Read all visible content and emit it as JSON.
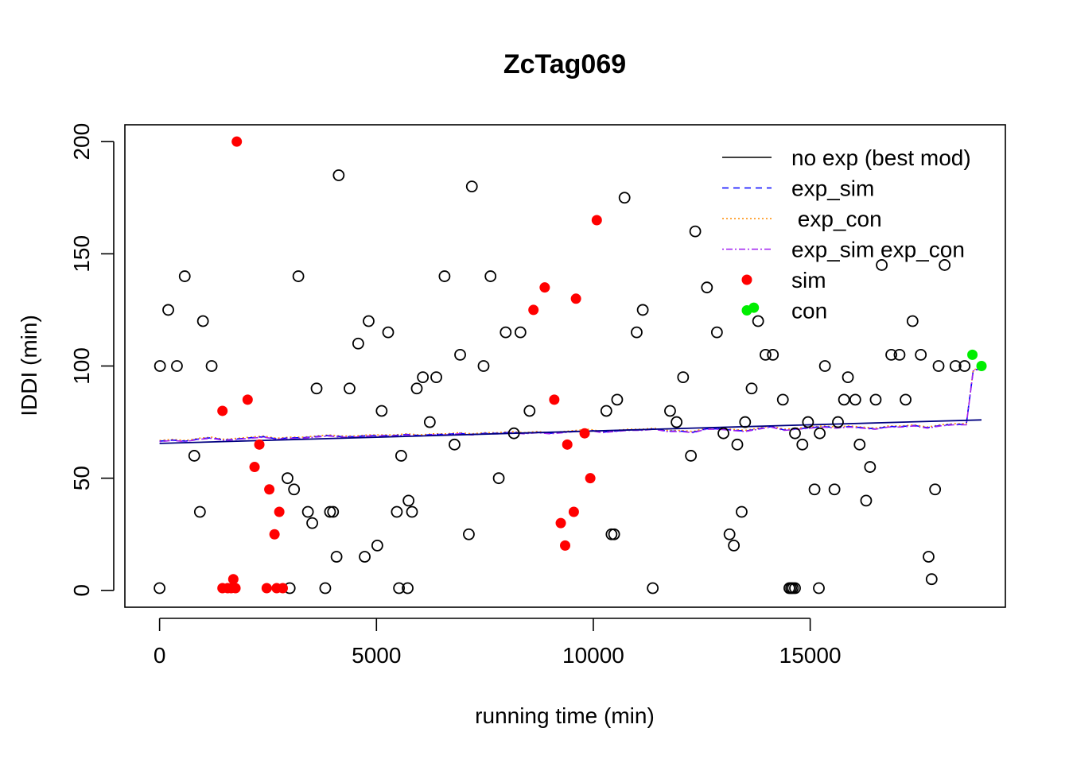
{
  "chart_data": {
    "type": "scatter",
    "title": "ZcTag069",
    "xlabel": "running time (min)",
    "ylabel": "IDDI (min)",
    "xlim": [
      -800,
      19500
    ],
    "ylim": [
      -7.5,
      207.5
    ],
    "x_ticks": [
      0,
      5000,
      10000,
      15000
    ],
    "y_ticks": [
      0,
      50,
      100,
      150,
      200
    ],
    "x_tick_labels": [
      "0",
      "5000",
      "10000",
      "15000"
    ],
    "y_tick_labels": [
      "0",
      "50",
      "100",
      "150",
      "200"
    ],
    "legend_position": "top-right",
    "colors": {
      "obs": "#000000",
      "sim": "#ff0000",
      "con": "#00ee00",
      "no_exp": "#000080",
      "exp_sim": "#0000ff",
      "exp_con": "#ff8c00",
      "exp_sim_con": "#a020f0"
    },
    "legend": [
      {
        "label": "no exp (best mod)",
        "style": "solid",
        "color": "#000000"
      },
      {
        "label": "exp_sim",
        "style": "dashed",
        "color": "#0000ff"
      },
      {
        "label": " exp_con",
        "style": "dotted",
        "color": "#ff8c00"
      },
      {
        "label": "exp_sim exp_con",
        "style": "dotdash",
        "color": "#a020f0"
      },
      {
        "label": "sim",
        "style": "point",
        "color": "#ff0000"
      },
      {
        "label": "con",
        "style": "point",
        "color": "#00ee00"
      }
    ],
    "points_open": [
      [
        0,
        1
      ],
      [
        10,
        100
      ],
      [
        200,
        125
      ],
      [
        400,
        100
      ],
      [
        580,
        140
      ],
      [
        800,
        60
      ],
      [
        930,
        35
      ],
      [
        1000,
        120
      ],
      [
        1200,
        100
      ],
      [
        2950,
        50
      ],
      [
        3000,
        1
      ],
      [
        3100,
        45
      ],
      [
        3200,
        140
      ],
      [
        3420,
        35
      ],
      [
        3520,
        30
      ],
      [
        3620,
        90
      ],
      [
        3820,
        1
      ],
      [
        3930,
        35
      ],
      [
        4000,
        35
      ],
      [
        4080,
        15
      ],
      [
        4130,
        185
      ],
      [
        4380,
        90
      ],
      [
        4580,
        110
      ],
      [
        4730,
        15
      ],
      [
        4820,
        120
      ],
      [
        5020,
        20
      ],
      [
        5120,
        80
      ],
      [
        5270,
        115
      ],
      [
        5470,
        35
      ],
      [
        5520,
        1
      ],
      [
        5570,
        60
      ],
      [
        5720,
        1
      ],
      [
        5740,
        40
      ],
      [
        5820,
        35
      ],
      [
        5930,
        90
      ],
      [
        6070,
        95
      ],
      [
        6230,
        75
      ],
      [
        6380,
        95
      ],
      [
        6570,
        140
      ],
      [
        6800,
        65
      ],
      [
        6930,
        105
      ],
      [
        7130,
        25
      ],
      [
        7200,
        180
      ],
      [
        7470,
        100
      ],
      [
        7630,
        140
      ],
      [
        7820,
        50
      ],
      [
        7980,
        115
      ],
      [
        8170,
        70
      ],
      [
        8320,
        115
      ],
      [
        8530,
        80
      ],
      [
        10300,
        80
      ],
      [
        10420,
        25
      ],
      [
        10480,
        25
      ],
      [
        10550,
        85
      ],
      [
        10720,
        175
      ],
      [
        11000,
        115
      ],
      [
        11140,
        125
      ],
      [
        11370,
        1
      ],
      [
        11770,
        80
      ],
      [
        11920,
        75
      ],
      [
        12070,
        95
      ],
      [
        12250,
        60
      ],
      [
        12350,
        160
      ],
      [
        12620,
        135
      ],
      [
        12850,
        115
      ],
      [
        13000,
        70
      ],
      [
        13140,
        25
      ],
      [
        13240,
        20
      ],
      [
        13320,
        65
      ],
      [
        13420,
        35
      ],
      [
        13500,
        75
      ],
      [
        13650,
        90
      ],
      [
        13800,
        120
      ],
      [
        13970,
        105
      ],
      [
        14140,
        105
      ],
      [
        14370,
        85
      ],
      [
        14520,
        1
      ],
      [
        14560,
        1
      ],
      [
        14600,
        1
      ],
      [
        14650,
        1
      ],
      [
        14650,
        70
      ],
      [
        14820,
        65
      ],
      [
        14950,
        75
      ],
      [
        15100,
        45
      ],
      [
        15200,
        1
      ],
      [
        15220,
        70
      ],
      [
        15340,
        100
      ],
      [
        15560,
        45
      ],
      [
        15640,
        75
      ],
      [
        15780,
        85
      ],
      [
        15870,
        95
      ],
      [
        16040,
        85
      ],
      [
        16140,
        65
      ],
      [
        16290,
        40
      ],
      [
        16380,
        55
      ],
      [
        16510,
        85
      ],
      [
        16650,
        145
      ],
      [
        16870,
        105
      ],
      [
        17060,
        105
      ],
      [
        17200,
        85
      ],
      [
        17360,
        120
      ],
      [
        17550,
        105
      ],
      [
        17730,
        15
      ],
      [
        17800,
        5
      ],
      [
        17880,
        45
      ],
      [
        17960,
        100
      ],
      [
        18100,
        145
      ],
      [
        18350,
        100
      ],
      [
        18560,
        100
      ]
    ],
    "points_sim": [
      [
        1450,
        1
      ],
      [
        1450,
        80
      ],
      [
        1570,
        1
      ],
      [
        1650,
        1
      ],
      [
        1700,
        5
      ],
      [
        1750,
        1
      ],
      [
        1780,
        200
      ],
      [
        2030,
        85
      ],
      [
        2190,
        55
      ],
      [
        2300,
        65
      ],
      [
        2470,
        1
      ],
      [
        2530,
        45
      ],
      [
        2650,
        25
      ],
      [
        2700,
        1
      ],
      [
        2760,
        35
      ],
      [
        2840,
        1
      ],
      [
        8620,
        125
      ],
      [
        8880,
        135
      ],
      [
        9100,
        85
      ],
      [
        9250,
        30
      ],
      [
        9350,
        20
      ],
      [
        9400,
        65
      ],
      [
        9550,
        35
      ],
      [
        9600,
        130
      ],
      [
        9800,
        70
      ],
      [
        9930,
        50
      ],
      [
        10080,
        165
      ]
    ],
    "points_con": [
      [
        13700,
        126
      ],
      [
        18740,
        105
      ],
      [
        18950,
        100
      ]
    ],
    "line_no_exp": [
      [
        0,
        65.5
      ],
      [
        18950,
        76
      ]
    ],
    "line_exp": [
      [
        0,
        66.5
      ],
      [
        300,
        67
      ],
      [
        600,
        66.5
      ],
      [
        900,
        67.5
      ],
      [
        1200,
        68
      ],
      [
        1500,
        67
      ],
      [
        1800,
        67.5
      ],
      [
        2100,
        68
      ],
      [
        2400,
        68.5
      ],
      [
        2700,
        67.5
      ],
      [
        3000,
        68
      ],
      [
        3300,
        68
      ],
      [
        3600,
        68.5
      ],
      [
        3900,
        69
      ],
      [
        4200,
        68.5
      ],
      [
        4500,
        68.5
      ],
      [
        4800,
        69
      ],
      [
        5100,
        69
      ],
      [
        5400,
        69
      ],
      [
        5700,
        69.5
      ],
      [
        6000,
        69
      ],
      [
        6300,
        69.5
      ],
      [
        6600,
        69.5
      ],
      [
        6900,
        70
      ],
      [
        7200,
        69.5
      ],
      [
        7500,
        70
      ],
      [
        7800,
        70
      ],
      [
        8100,
        70.5
      ],
      [
        8400,
        70
      ],
      [
        8700,
        70.5
      ],
      [
        9000,
        70
      ],
      [
        9300,
        70.5
      ],
      [
        9600,
        71
      ],
      [
        9900,
        71.5
      ],
      [
        10200,
        70.5
      ],
      [
        10500,
        71
      ],
      [
        10800,
        71.5
      ],
      [
        11100,
        71.5
      ],
      [
        11400,
        72
      ],
      [
        11700,
        71
      ],
      [
        12000,
        71
      ],
      [
        12300,
        70.5
      ],
      [
        12600,
        72
      ],
      [
        12900,
        72
      ],
      [
        13200,
        71.5
      ],
      [
        13500,
        71
      ],
      [
        13800,
        72
      ],
      [
        14100,
        73
      ],
      [
        14400,
        71.5
      ],
      [
        14700,
        72
      ],
      [
        15000,
        72.5
      ],
      [
        15300,
        73
      ],
      [
        15600,
        72.5
      ],
      [
        15900,
        73
      ],
      [
        16200,
        72.5
      ],
      [
        16500,
        72
      ],
      [
        16800,
        73
      ],
      [
        17100,
        73
      ],
      [
        17400,
        73.5
      ],
      [
        17700,
        72.5
      ],
      [
        18000,
        73.5
      ],
      [
        18300,
        74
      ],
      [
        18600,
        74
      ],
      [
        18760,
        98
      ],
      [
        18950,
        99
      ]
    ]
  }
}
